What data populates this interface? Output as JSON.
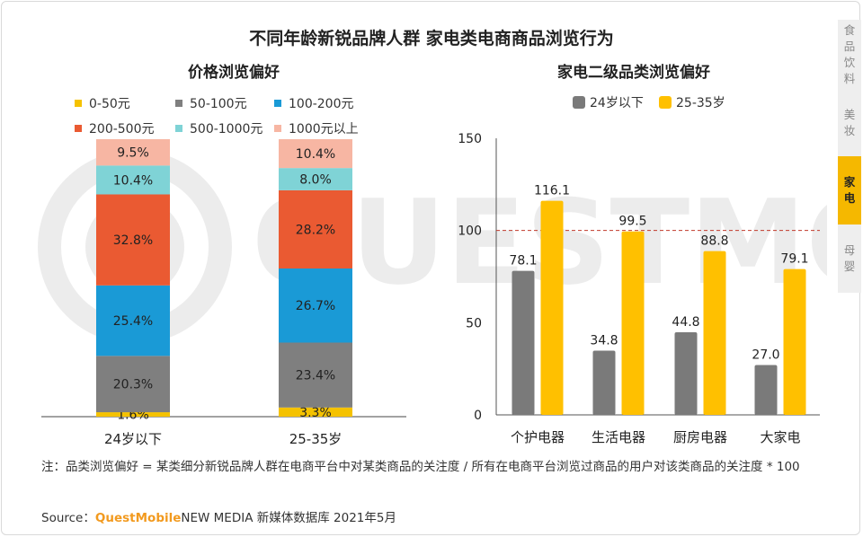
{
  "title": "不同年龄新锐品牌人群 家电类电商商品浏览行为",
  "side_tabs": [
    {
      "label": "食品饮料",
      "active": false
    },
    {
      "label": "美妆",
      "active": false
    },
    {
      "label": "家电",
      "active": true
    },
    {
      "label": "母婴",
      "active": false
    }
  ],
  "note": "注：品类浏览偏好 = 某类细分新锐品牌人群在电商平台中对某类商品的关注度 / 所有在电商平台浏览过商品的用户对该类商品的关注度 * 100",
  "source": {
    "prefix": "Source：",
    "brand": "QuestMobile",
    "suffix": "NEW MEDIA 新媒体数据库 2021年5月"
  },
  "chart_data": [
    {
      "type": "bar",
      "stacked": true,
      "percent": true,
      "title": "价格浏览偏好",
      "categories": [
        "24岁以下",
        "25-35岁"
      ],
      "series": [
        {
          "name": "0-50元",
          "color": "#f5c200",
          "values": [
            1.6,
            3.3
          ]
        },
        {
          "name": "50-100元",
          "color": "#7f7f7f",
          "values": [
            20.3,
            23.4
          ]
        },
        {
          "name": "100-200元",
          "color": "#1a9ad6",
          "values": [
            25.4,
            26.7
          ]
        },
        {
          "name": "200-500元",
          "color": "#ea5a32",
          "values": [
            32.8,
            28.2
          ]
        },
        {
          "name": "500-1000元",
          "color": "#7fd3d6",
          "values": [
            10.4,
            8.0
          ]
        },
        {
          "name": "1000元以上",
          "color": "#f7b6a3",
          "values": [
            9.5,
            10.4
          ]
        }
      ],
      "legend_position": "top"
    },
    {
      "type": "bar",
      "title": "家电二级品类浏览偏好",
      "categories": [
        "个护电器",
        "生活电器",
        "厨房电器",
        "大家电"
      ],
      "series": [
        {
          "name": "24岁以下",
          "color": "#7a7a7a",
          "values": [
            78.1,
            34.8,
            44.8,
            27.0
          ]
        },
        {
          "name": "25-35岁",
          "color": "#ffc000",
          "values": [
            116.1,
            99.5,
            88.8,
            79.1
          ]
        }
      ],
      "ylim": [
        0,
        150
      ],
      "yticks": [
        0,
        50,
        100,
        150
      ],
      "reference_line": 100,
      "legend_position": "top"
    }
  ]
}
